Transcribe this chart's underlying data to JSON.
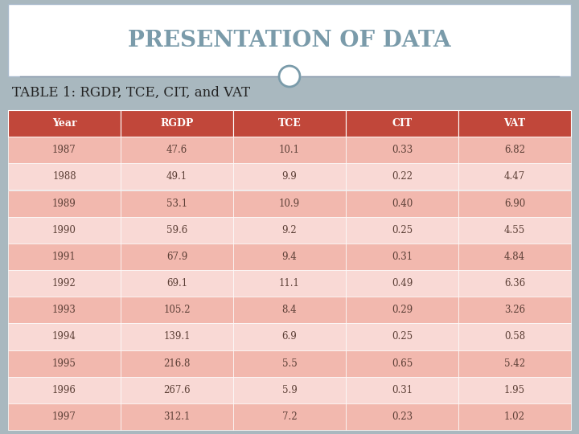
{
  "title": "PRESENTATION OF DATA",
  "subtitle": "TABLE 1: RGDP, TCE, CIT, and VAT",
  "columns": [
    "Year",
    "RGDP",
    "TCE",
    "CIT",
    "VAT"
  ],
  "rows": [
    [
      "1987",
      "47.6",
      "10.1",
      "0.33",
      "6.82"
    ],
    [
      "1988",
      "49.1",
      "9.9",
      "0.22",
      "4.47"
    ],
    [
      "1989",
      "53.1",
      "10.9",
      "0.40",
      "6.90"
    ],
    [
      "1990",
      "59.6",
      "9.2",
      "0.25",
      "4.55"
    ],
    [
      "1991",
      "67.9",
      "9.4",
      "0.31",
      "4.84"
    ],
    [
      "1992",
      "69.1",
      "11.1",
      "0.49",
      "6.36"
    ],
    [
      "1993",
      "105.2",
      "8.4",
      "0.29",
      "3.26"
    ],
    [
      "1994",
      "139.1",
      "6.9",
      "0.25",
      "0.58"
    ],
    [
      "1995",
      "216.8",
      "5.5",
      "0.65",
      "5.42"
    ],
    [
      "1996",
      "267.6",
      "5.9",
      "0.31",
      "1.95"
    ],
    [
      "1997",
      "312.1",
      "7.2",
      "0.23",
      "1.02"
    ]
  ],
  "header_bg": "#C1473A",
  "header_text": "#FFFFFF",
  "row_even_bg": "#F2B8AE",
  "row_odd_bg": "#F9D9D5",
  "title_color": "#7A9BAA",
  "title_bg": "#FFFFFF",
  "title_border": "#AABBCC",
  "subtitle_color": "#222222",
  "background_color": "#A9B8BF",
  "separator_color": "#8899AA",
  "circle_fill": "#FFFFFF",
  "circle_edge": "#7A9BAA",
  "cell_text_color": "#5D4037",
  "font_size_title": 20,
  "font_size_subtitle": 12,
  "font_size_header": 9,
  "font_size_cell": 8.5
}
